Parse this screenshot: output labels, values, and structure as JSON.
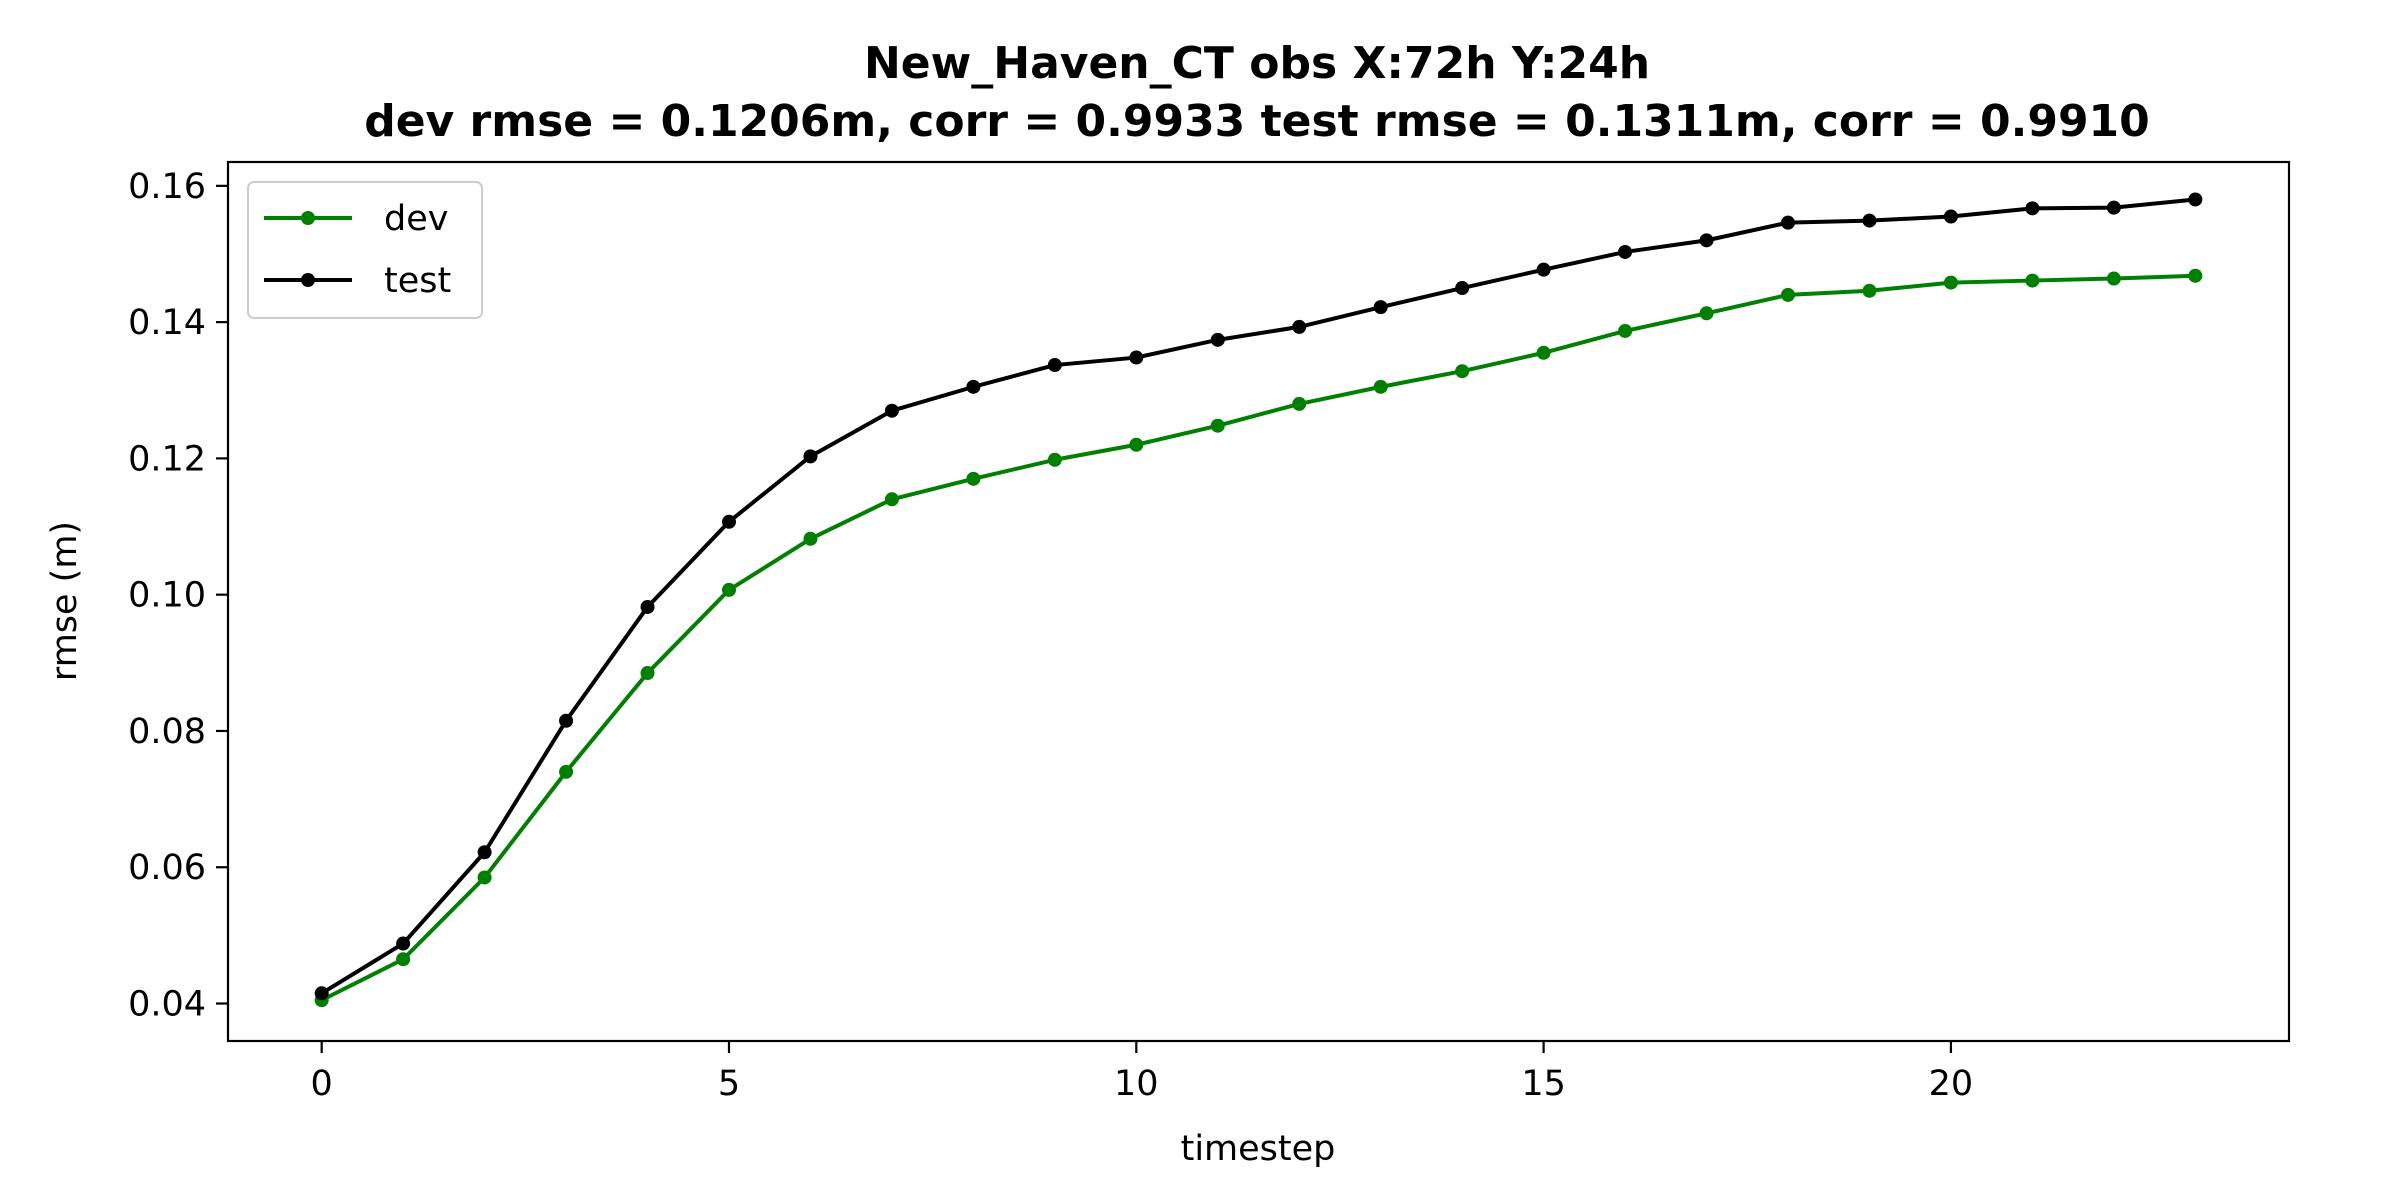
{
  "chart_data": {
    "type": "line",
    "title": "New_Haven_CT   obs   X:72h   Y:24h",
    "subtitle": "dev rmse = 0.1206m, corr = 0.9933   test rmse = 0.1311m, corr = 0.9910",
    "xlabel": "timestep",
    "ylabel": "rmse (m)",
    "xlim": [
      -1.15,
      24.15
    ],
    "ylim": [
      0.0345,
      0.1635
    ],
    "xticks": [
      0,
      5,
      10,
      15,
      20
    ],
    "xtick_labels": [
      "0",
      "5",
      "10",
      "15",
      "20"
    ],
    "yticks": [
      0.04,
      0.06,
      0.08,
      0.1,
      0.12,
      0.14,
      0.16
    ],
    "ytick_labels": [
      "0.04",
      "0.06",
      "0.08",
      "0.10",
      "0.12",
      "0.14",
      "0.16"
    ],
    "grid": false,
    "legend_position": "top-left",
    "x": [
      0,
      1,
      2,
      3,
      4,
      5,
      6,
      7,
      8,
      9,
      10,
      11,
      12,
      13,
      14,
      15,
      16,
      17,
      18,
      19,
      20,
      21,
      22,
      23
    ],
    "series": [
      {
        "name": "dev",
        "color": "#008000",
        "values": [
          0.0405,
          0.0465,
          0.0585,
          0.074,
          0.0885,
          0.1007,
          0.1082,
          0.114,
          0.117,
          0.1198,
          0.122,
          0.1248,
          0.128,
          0.1305,
          0.1328,
          0.1355,
          0.1387,
          0.1413,
          0.144,
          0.1446,
          0.1458,
          0.1461,
          0.1464,
          0.1468
        ]
      },
      {
        "name": "test",
        "color": "#000000",
        "values": [
          0.0415,
          0.0488,
          0.0622,
          0.0815,
          0.0982,
          0.1107,
          0.1203,
          0.127,
          0.1305,
          0.1337,
          0.1348,
          0.1374,
          0.1393,
          0.1422,
          0.145,
          0.1477,
          0.1503,
          0.152,
          0.1546,
          0.1549,
          0.1555,
          0.1567,
          0.1568,
          0.158
        ]
      }
    ]
  }
}
